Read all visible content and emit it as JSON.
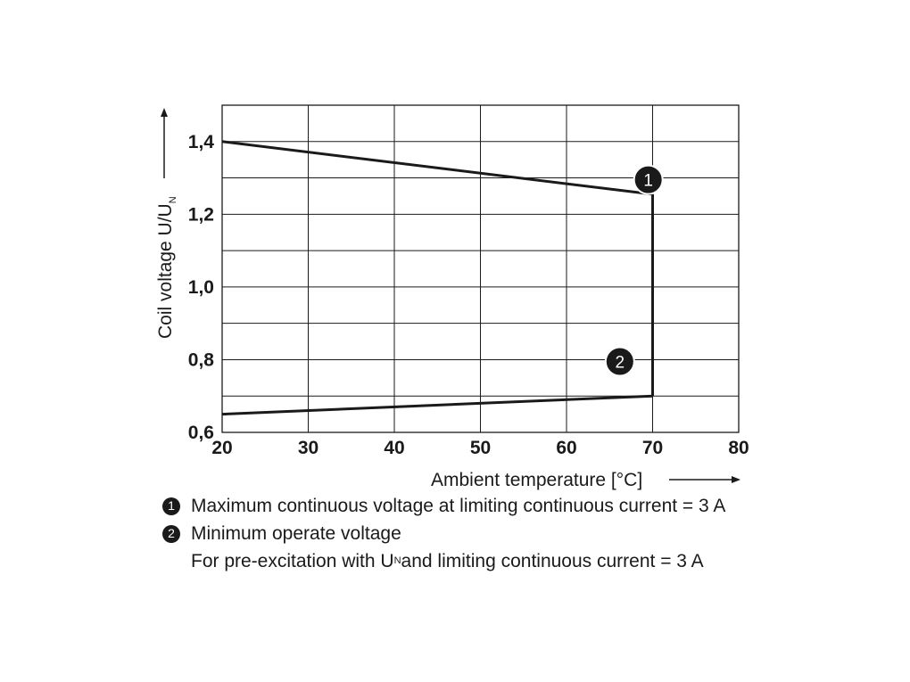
{
  "chart_data": {
    "type": "line",
    "xlabel": "Ambient temperature [°C]",
    "ylabel_main": "Coil voltage U/U",
    "ylabel_sub": "N",
    "x_ticks": [
      "20",
      "30",
      "40",
      "50",
      "60",
      "70",
      "80"
    ],
    "y_ticks": [
      "0,6",
      "0,8",
      "1,0",
      "1,2",
      "1,4"
    ],
    "xlim": [
      20,
      80
    ],
    "ylim": [
      0.6,
      1.5
    ],
    "grid": true,
    "x_grid_step": 10,
    "y_grid_step": 0.1,
    "series": [
      {
        "marker": "1",
        "points": [
          [
            20,
            1.4
          ],
          [
            70,
            1.255
          ]
        ]
      },
      {
        "marker": "2",
        "points": [
          [
            20,
            0.65
          ],
          [
            70,
            0.7
          ]
        ]
      }
    ],
    "vertical_limit": {
      "x": 70,
      "y_from": 0.7,
      "y_to": 1.255
    },
    "markers": [
      {
        "label": "1",
        "x": 69.5,
        "y": 1.295
      },
      {
        "label": "2",
        "x": 66.2,
        "y": 0.795
      }
    ],
    "colors": {
      "line": "#1a1a1a",
      "grid": "#1a1a1a",
      "marker_fill": "#1a1a1a"
    }
  },
  "legend": {
    "item1": {
      "badge": "1",
      "text": "Maximum continuous voltage at limiting continuous current = 3 A"
    },
    "item2": {
      "badge": "2",
      "text": "Minimum operate voltage"
    },
    "note": {
      "prefix": "For pre-excitation with U",
      "sub": "N",
      "suffix": " and limiting continuous current = 3 A"
    }
  }
}
